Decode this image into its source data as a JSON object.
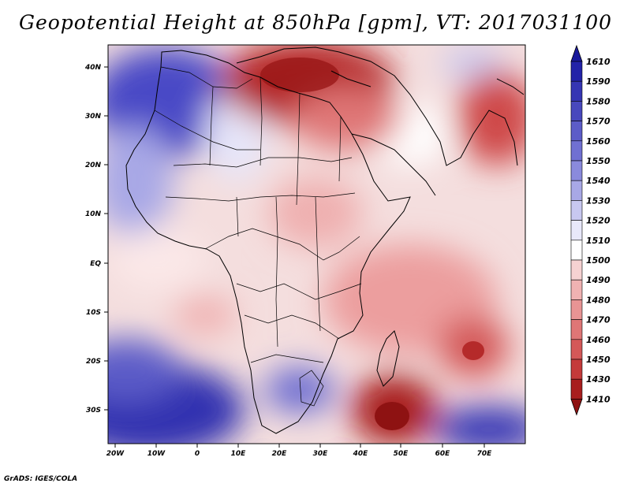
{
  "title": "Geopotential Height at 850hPa [gpm], VT: 2017031100",
  "credit": "GrADS: IGES/COLA",
  "axes": {
    "lat_labels": [
      "40N",
      "30N",
      "20N",
      "10N",
      "EQ",
      "10S",
      "20S",
      "30S"
    ],
    "lon_labels": [
      "20W",
      "10W",
      "0",
      "10E",
      "20E",
      "30E",
      "40E",
      "50E",
      "60E",
      "70E"
    ]
  },
  "colorbar": {
    "levels": [
      "1610",
      "1590",
      "1580",
      "1570",
      "1560",
      "1550",
      "1540",
      "1530",
      "1520",
      "1510",
      "1500",
      "1490",
      "1480",
      "1470",
      "1460",
      "1450",
      "1430",
      "1410"
    ],
    "colors": [
      "#1a1a9c",
      "#2323a8",
      "#3535b3",
      "#4848bd",
      "#5c5cc8",
      "#7070d2",
      "#8a8adc",
      "#a8a8e6",
      "#c8c8f0",
      "#e8e8fa",
      "#ffffff",
      "#f6d2d2",
      "#f0b2b2",
      "#e89494",
      "#df7676",
      "#d45858",
      "#c43a3a",
      "#a81e1e",
      "#8e1212"
    ]
  },
  "icons": {
    "colorbar_top": "triangle-up-icon",
    "colorbar_bottom": "triangle-down-icon"
  }
}
